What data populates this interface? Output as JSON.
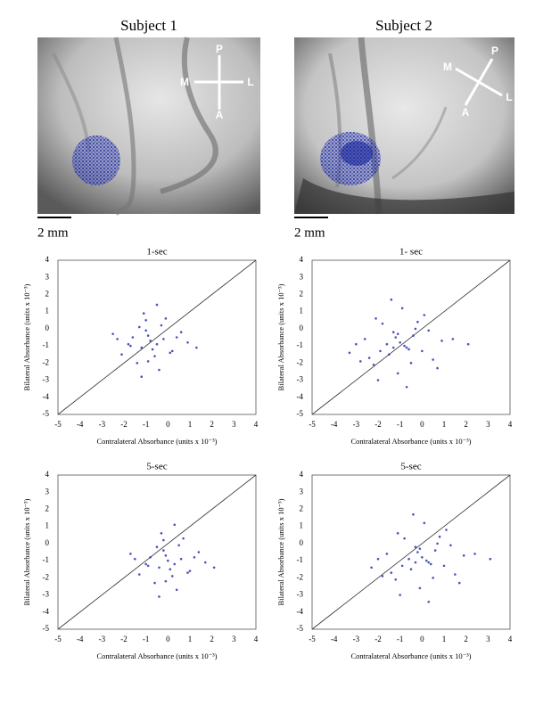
{
  "panels": [
    {
      "title": "Subject 1",
      "scale": "2 mm",
      "compass": {
        "P": "P",
        "M": "M",
        "L": "L",
        "A": "A"
      }
    },
    {
      "title": "Subject 2",
      "scale": "2 mm",
      "compass": {
        "P": "P",
        "M": "M",
        "L": "L",
        "A": "A"
      }
    }
  ],
  "chart_data": [
    {
      "type": "scatter",
      "title": "1-sec",
      "x_label": "Contralateral Absorbance (units x 10⁻³)",
      "y_label": "Bilateral Absorbance (units x 10⁻³)",
      "x": [
        -0.8,
        -1.2,
        -0.3,
        -1.6,
        0.2,
        -0.9,
        -2.1,
        -0.5,
        -1.0,
        0.6,
        -1.4,
        -0.7,
        -0.2,
        -1.8,
        -1.1,
        0.9,
        -0.6,
        -2.5,
        -0.4,
        -1.3,
        0.4,
        -0.9,
        -1.7,
        -0.1,
        -1.0,
        1.3,
        -2.3,
        -0.5,
        -1.2,
        0.1
      ],
      "y": [
        -0.7,
        -1.1,
        0.2,
        -0.5,
        -1.3,
        -0.4,
        -1.5,
        -0.9,
        0.5,
        -0.2,
        -2.0,
        -1.2,
        -0.6,
        -0.9,
        0.9,
        -0.8,
        -1.6,
        -0.3,
        -2.4,
        0.1,
        -0.5,
        -1.9,
        -1.0,
        0.6,
        -0.1,
        -1.1,
        -0.6,
        1.4,
        -2.8,
        -1.4
      ],
      "color": "#2a34b0",
      "xlim": [
        -5,
        4
      ],
      "ylim": [
        -5,
        4
      ],
      "xticks": [
        -5,
        -4,
        -3,
        -2,
        -1,
        0,
        1,
        2,
        3,
        4
      ],
      "yticks": [
        -5,
        -4,
        -3,
        -2,
        -1,
        0,
        1,
        2,
        3,
        4
      ],
      "identity_line": true
    },
    {
      "type": "scatter",
      "title": "1- sec",
      "x_label": "Contralateral Absorbance (units x 10⁻³)",
      "y_label": "Bilateral Absorbance (units x 10⁻³)",
      "x": [
        -1.0,
        -1.9,
        -0.2,
        -2.6,
        0.5,
        -1.3,
        -0.7,
        -2.2,
        0.1,
        -1.5,
        -3.0,
        -0.4,
        -1.1,
        0.9,
        -1.8,
        -0.6,
        -2.4,
        0.3,
        -1.2,
        -0.9,
        -3.3,
        0.7,
        -1.6,
        -0.3,
        -2.0,
        1.4,
        -0.8,
        -1.4,
        -2.8,
        0.0,
        -1.1,
        -0.5,
        2.1,
        -2.1,
        -0.7,
        -1.3
      ],
      "y": [
        -0.8,
        -1.3,
        0.4,
        -0.6,
        -1.8,
        -0.2,
        -1.1,
        -2.1,
        0.8,
        -1.5,
        -0.9,
        -0.4,
        -2.6,
        -0.7,
        0.3,
        -1.2,
        -1.7,
        -0.1,
        -0.5,
        1.2,
        -1.4,
        -2.3,
        -0.9,
        0.0,
        -3.0,
        -0.6,
        -1.0,
        1.7,
        -1.9,
        -1.3,
        -0.3,
        -2.0,
        -0.9,
        0.6,
        -3.4,
        -1.1
      ],
      "color": "#2a34b0",
      "xlim": [
        -5,
        4
      ],
      "ylim": [
        -5,
        4
      ],
      "xticks": [
        -5,
        -4,
        -3,
        -2,
        -1,
        0,
        1,
        2,
        3,
        4
      ],
      "yticks": [
        -5,
        -4,
        -3,
        -2,
        -1,
        0,
        1,
        2,
        3,
        4
      ],
      "identity_line": true
    },
    {
      "type": "scatter",
      "title": "5-sec",
      "x_label": "Contralateral Absorbance (units x 10⁻³)",
      "y_label": "Bilateral Absorbance (units x 10⁻³)",
      "x": [
        0.0,
        -0.4,
        0.5,
        -0.8,
        1.0,
        -0.1,
        -1.3,
        0.3,
        -0.2,
        1.4,
        -0.6,
        0.1,
        0.6,
        -1.0,
        -0.3,
        1.7,
        0.2,
        -1.7,
        0.4,
        -0.5,
        1.2,
        -0.1,
        -0.9,
        0.7,
        -0.2,
        2.1,
        -1.5,
        0.3,
        -0.4,
        0.9
      ],
      "y": [
        -1.0,
        -1.4,
        -0.1,
        -0.8,
        -1.6,
        -0.7,
        -1.8,
        -1.2,
        0.2,
        -0.5,
        -2.3,
        -1.5,
        -0.9,
        -1.2,
        0.6,
        -1.1,
        -1.9,
        -0.6,
        -2.7,
        -0.2,
        -0.8,
        -2.2,
        -1.3,
        0.3,
        -0.4,
        -1.4,
        -0.9,
        1.1,
        -3.1,
        -1.7
      ],
      "color": "#2a34b0",
      "xlim": [
        -5,
        4
      ],
      "ylim": [
        -5,
        4
      ],
      "xticks": [
        -5,
        -4,
        -3,
        -2,
        -1,
        0,
        1,
        2,
        3,
        4
      ],
      "yticks": [
        -5,
        -4,
        -3,
        -2,
        -1,
        0,
        1,
        2,
        3,
        4
      ],
      "identity_line": true
    },
    {
      "type": "scatter",
      "title": "5-sec",
      "x_label": "Contralateral Absorbance (units x 10⁻³)",
      "y_label": "Bilateral Absorbance (units x 10⁻³)",
      "x": [
        0.0,
        -0.9,
        0.8,
        -1.6,
        1.5,
        -0.3,
        0.3,
        -1.2,
        1.1,
        -0.5,
        -2.0,
        0.6,
        -0.1,
        1.9,
        -0.8,
        0.4,
        -1.4,
        1.3,
        -0.2,
        0.1,
        -2.3,
        1.7,
        -0.6,
        0.7,
        -1.0,
        2.4,
        0.2,
        -0.4,
        -1.8,
        1.0,
        -0.1,
        0.5,
        3.1,
        -1.1,
        0.3,
        -0.3
      ],
      "y": [
        -0.8,
        -1.3,
        0.4,
        -0.6,
        -1.8,
        -0.2,
        -1.1,
        -2.1,
        0.8,
        -1.5,
        -0.9,
        -0.4,
        -2.6,
        -0.7,
        0.3,
        -1.2,
        -1.7,
        -0.1,
        -0.5,
        1.2,
        -1.4,
        -2.3,
        -0.9,
        0.0,
        -3.0,
        -0.6,
        -1.0,
        1.7,
        -1.9,
        -1.3,
        -0.3,
        -2.0,
        -0.9,
        0.6,
        -3.4,
        -1.1
      ],
      "color": "#2a34b0",
      "xlim": [
        -5,
        4
      ],
      "ylim": [
        -5,
        4
      ],
      "xticks": [
        -5,
        -4,
        -3,
        -2,
        -1,
        0,
        1,
        2,
        3,
        4
      ],
      "yticks": [
        -5,
        -4,
        -3,
        -2,
        -1,
        0,
        1,
        2,
        3,
        4
      ],
      "identity_line": true
    }
  ]
}
